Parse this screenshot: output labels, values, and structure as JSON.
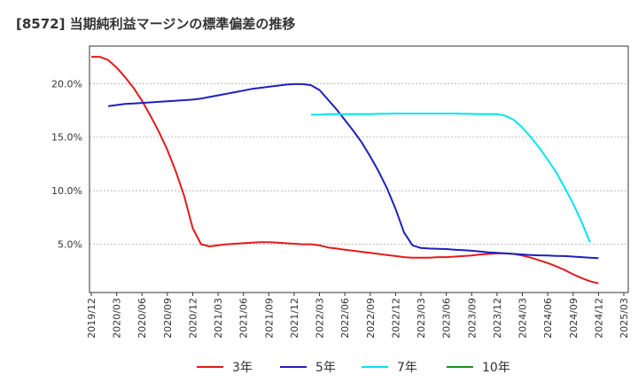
{
  "chart_data": {
    "type": "line",
    "title": "[8572]  当期純利益マージンの標準偏差の推移",
    "xlabel": "",
    "ylabel": "",
    "ylim": [
      0.5,
      23.5
    ],
    "yticks": [
      5.0,
      10.0,
      15.0,
      20.0
    ],
    "ytick_labels": [
      "5.0%",
      "10.0%",
      "15.0%",
      "20.0%"
    ],
    "xtick_labels": [
      "2019/12",
      "2020/03",
      "2020/06",
      "2020/09",
      "2020/12",
      "2021/03",
      "2021/06",
      "2021/09",
      "2021/12",
      "2022/03",
      "2022/06",
      "2022/09",
      "2022/12",
      "2023/03",
      "2023/06",
      "2023/09",
      "2023/12",
      "2024/03",
      "2024/06",
      "2024/09",
      "2024/12",
      "2025/03"
    ],
    "grid": "horizontal",
    "legend_position": "bottom",
    "series": [
      {
        "name": "3年",
        "color": "#e31a1c",
        "points": [
          [
            "2019/12",
            22.5
          ],
          [
            "2020/01",
            22.5
          ],
          [
            "2020/02",
            22.2
          ],
          [
            "2020/03",
            21.5
          ],
          [
            "2020/04",
            20.6
          ],
          [
            "2020/05",
            19.6
          ],
          [
            "2020/06",
            18.4
          ],
          [
            "2020/07",
            17.0
          ],
          [
            "2020/08",
            15.5
          ],
          [
            "2020/09",
            13.8
          ],
          [
            "2020/10",
            11.8
          ],
          [
            "2020/11",
            9.5
          ],
          [
            "2020/12",
            6.5
          ],
          [
            "2021/01",
            5.0
          ],
          [
            "2021/02",
            4.8
          ],
          [
            "2021/03",
            4.9
          ],
          [
            "2021/04",
            5.0
          ],
          [
            "2021/05",
            5.05
          ],
          [
            "2021/06",
            5.1
          ],
          [
            "2021/07",
            5.15
          ],
          [
            "2021/08",
            5.2
          ],
          [
            "2021/09",
            5.2
          ],
          [
            "2021/10",
            5.15
          ],
          [
            "2021/11",
            5.1
          ],
          [
            "2021/12",
            5.05
          ],
          [
            "2022/01",
            5.0
          ],
          [
            "2022/02",
            5.0
          ],
          [
            "2022/03",
            4.9
          ],
          [
            "2022/04",
            4.7
          ],
          [
            "2022/05",
            4.6
          ],
          [
            "2022/06",
            4.5
          ],
          [
            "2022/07",
            4.4
          ],
          [
            "2022/08",
            4.3
          ],
          [
            "2022/09",
            4.2
          ],
          [
            "2022/10",
            4.1
          ],
          [
            "2022/11",
            4.0
          ],
          [
            "2022/12",
            3.9
          ],
          [
            "2023/01",
            3.8
          ],
          [
            "2023/02",
            3.75
          ],
          [
            "2023/03",
            3.75
          ],
          [
            "2023/04",
            3.75
          ],
          [
            "2023/05",
            3.8
          ],
          [
            "2023/06",
            3.8
          ],
          [
            "2023/07",
            3.85
          ],
          [
            "2023/08",
            3.9
          ],
          [
            "2023/09",
            3.95
          ],
          [
            "2023/10",
            4.05
          ],
          [
            "2023/11",
            4.1
          ],
          [
            "2023/12",
            4.15
          ],
          [
            "2024/01",
            4.15
          ],
          [
            "2024/02",
            4.1
          ],
          [
            "2024/03",
            3.95
          ],
          [
            "2024/04",
            3.75
          ],
          [
            "2024/05",
            3.5
          ],
          [
            "2024/06",
            3.25
          ],
          [
            "2024/07",
            2.95
          ],
          [
            "2024/08",
            2.6
          ],
          [
            "2024/09",
            2.2
          ],
          [
            "2024/10",
            1.85
          ],
          [
            "2024/11",
            1.55
          ],
          [
            "2024/12",
            1.35
          ]
        ]
      },
      {
        "name": "5年",
        "color": "#1f1fbf",
        "points": [
          [
            "2020/02",
            17.9
          ],
          [
            "2020/03",
            18.0
          ],
          [
            "2020/04",
            18.1
          ],
          [
            "2020/05",
            18.15
          ],
          [
            "2020/06",
            18.2
          ],
          [
            "2020/07",
            18.25
          ],
          [
            "2020/08",
            18.3
          ],
          [
            "2020/09",
            18.35
          ],
          [
            "2020/10",
            18.4
          ],
          [
            "2020/11",
            18.45
          ],
          [
            "2020/12",
            18.5
          ],
          [
            "2021/01",
            18.6
          ],
          [
            "2021/02",
            18.75
          ],
          [
            "2021/03",
            18.9
          ],
          [
            "2021/04",
            19.05
          ],
          [
            "2021/05",
            19.2
          ],
          [
            "2021/06",
            19.35
          ],
          [
            "2021/07",
            19.5
          ],
          [
            "2021/08",
            19.6
          ],
          [
            "2021/09",
            19.7
          ],
          [
            "2021/10",
            19.8
          ],
          [
            "2021/11",
            19.9
          ],
          [
            "2021/12",
            19.95
          ],
          [
            "2022/01",
            19.95
          ],
          [
            "2022/02",
            19.85
          ],
          [
            "2022/03",
            19.4
          ],
          [
            "2022/04",
            18.5
          ],
          [
            "2022/05",
            17.6
          ],
          [
            "2022/06",
            16.6
          ],
          [
            "2022/07",
            15.6
          ],
          [
            "2022/08",
            14.5
          ],
          [
            "2022/09",
            13.2
          ],
          [
            "2022/10",
            11.8
          ],
          [
            "2022/11",
            10.2
          ],
          [
            "2022/12",
            8.3
          ],
          [
            "2023/01",
            6.1
          ],
          [
            "2023/02",
            4.9
          ],
          [
            "2023/03",
            4.65
          ],
          [
            "2023/04",
            4.6
          ],
          [
            "2023/05",
            4.58
          ],
          [
            "2023/06",
            4.55
          ],
          [
            "2023/07",
            4.5
          ],
          [
            "2023/08",
            4.45
          ],
          [
            "2023/09",
            4.4
          ],
          [
            "2023/10",
            4.32
          ],
          [
            "2023/11",
            4.25
          ],
          [
            "2023/12",
            4.2
          ],
          [
            "2024/01",
            4.15
          ],
          [
            "2024/02",
            4.1
          ],
          [
            "2024/03",
            4.05
          ],
          [
            "2024/04",
            4.0
          ],
          [
            "2024/05",
            3.97
          ],
          [
            "2024/06",
            3.95
          ],
          [
            "2024/07",
            3.92
          ],
          [
            "2024/08",
            3.9
          ],
          [
            "2024/09",
            3.85
          ],
          [
            "2024/10",
            3.8
          ],
          [
            "2024/11",
            3.75
          ],
          [
            "2024/12",
            3.7
          ]
        ]
      },
      {
        "name": "7年",
        "color": "#00e5ee",
        "points": [
          [
            "2022/02",
            17.1
          ],
          [
            "2022/03",
            17.1
          ],
          [
            "2022/04",
            17.15
          ],
          [
            "2022/05",
            17.15
          ],
          [
            "2022/06",
            17.15
          ],
          [
            "2022/07",
            17.15
          ],
          [
            "2022/08",
            17.15
          ],
          [
            "2022/09",
            17.15
          ],
          [
            "2022/10",
            17.18
          ],
          [
            "2022/11",
            17.18
          ],
          [
            "2022/12",
            17.2
          ],
          [
            "2023/01",
            17.2
          ],
          [
            "2023/02",
            17.2
          ],
          [
            "2023/03",
            17.2
          ],
          [
            "2023/04",
            17.2
          ],
          [
            "2023/05",
            17.2
          ],
          [
            "2023/06",
            17.2
          ],
          [
            "2023/07",
            17.2
          ],
          [
            "2023/08",
            17.18
          ],
          [
            "2023/09",
            17.17
          ],
          [
            "2023/10",
            17.15
          ],
          [
            "2023/11",
            17.15
          ],
          [
            "2023/12",
            17.15
          ],
          [
            "2024/01",
            17.0
          ],
          [
            "2024/02",
            16.6
          ],
          [
            "2024/03",
            15.9
          ],
          [
            "2024/04",
            15.0
          ],
          [
            "2024/05",
            14.0
          ],
          [
            "2024/06",
            12.9
          ],
          [
            "2024/07",
            11.7
          ],
          [
            "2024/08",
            10.3
          ],
          [
            "2024/09",
            8.8
          ],
          [
            "2024/10",
            7.1
          ],
          [
            "2024/11",
            5.2
          ]
        ]
      },
      {
        "name": "10年",
        "color": "#228b22",
        "points": []
      }
    ]
  }
}
